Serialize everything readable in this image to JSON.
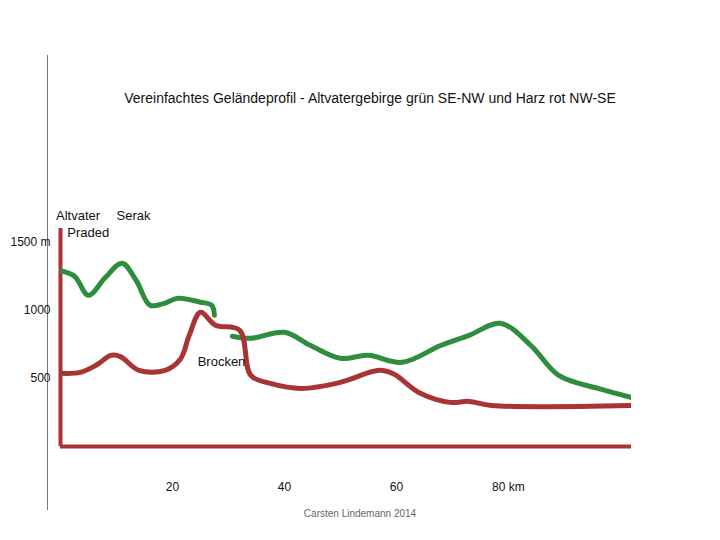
{
  "chart_data": {
    "type": "line",
    "title": "Vereinfachtes Geländeprofil  -  Altvatergebirge grün SE-NW und Harz  rot NW-SE",
    "caption": "Carsten Lindemann 2014",
    "xlim": [
      0,
      102
    ],
    "ylim": [
      0,
      1600
    ],
    "xticks": [
      20,
      40,
      60,
      {
        "value": 80,
        "label": "80 km"
      }
    ],
    "yticks": [
      {
        "value": 1500,
        "label": "1500 m"
      },
      1000,
      500
    ],
    "color": "#a83434",
    "series": [
      {
        "color": "#2e8e3e",
        "x": [
          0,
          2.5,
          5,
          8,
          11,
          13.5,
          16,
          18.5,
          21,
          25,
          27,
          27.5,
          29,
          30.7,
          34,
          40,
          44.6,
          50,
          55,
          61,
          68,
          73,
          78.6,
          84,
          89,
          96,
          102
        ],
        "values": [
          1290,
          1250,
          1110,
          1240,
          1345,
          1220,
          1037,
          1050,
          1088,
          1059,
          1037,
          963,
          null,
          809,
          794,
          838,
          743,
          647,
          669,
          618,
          743,
          816,
          904,
          743,
          522,
          426,
          360
        ]
      },
      {
        "color": "#a83434",
        "x": [
          0,
          3.5,
          6.5,
          9,
          10.7,
          14,
          18.7,
          21.4,
          23,
          25,
          27.7,
          32,
          34,
          37.5,
          43,
          50,
          57,
          59.6,
          64,
          69.6,
          73,
          77,
          102
        ],
        "values": [
          537,
          544,
          600,
          669,
          660,
          559,
          559,
          640,
          816,
          985,
          890,
          853,
          522,
          463,
          426,
          471,
          559,
          530,
          397,
          324,
          331,
          301,
          301
        ]
      }
    ],
    "annotations": [
      {
        "text": "Altvater",
        "x": -0.8,
        "y": 1690
      },
      {
        "text": "Praded",
        "x": 1.2,
        "y": 1570
      },
      {
        "text": "Serak",
        "x": 10,
        "y": 1690
      },
      {
        "text": "Brocken",
        "x": 24.5,
        "y": 625
      }
    ]
  }
}
